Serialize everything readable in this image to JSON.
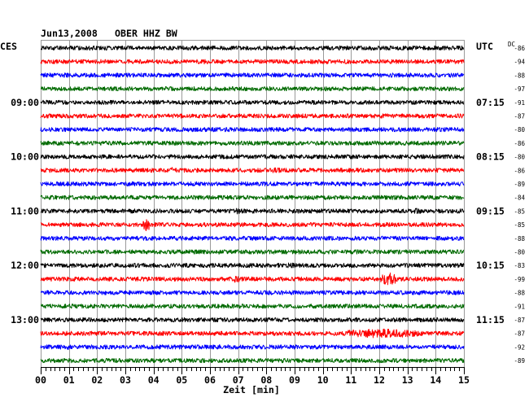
{
  "chart_data": {
    "type": "line",
    "date": "Jun13,2008",
    "station": "OBER HHZ BW",
    "left_header": "CES",
    "right_header": "UTC",
    "dc_header": "DC",
    "xlabel": "Zeit [min]",
    "xlim": [
      0,
      15
    ],
    "x_ticks": [
      "00",
      "01",
      "02",
      "03",
      "04",
      "05",
      "06",
      "07",
      "08",
      "09",
      "10",
      "11",
      "12",
      "13",
      "14",
      "15"
    ],
    "grid": true,
    "grid_color": "#9a9a9a",
    "series": [
      {
        "color": "#000000",
        "dc": -86
      },
      {
        "color": "#ff0000",
        "dc": -94,
        "events": [
          {
            "start_min": 5.7,
            "end_min": 6.0,
            "relative_amplitude": 1.6
          }
        ]
      },
      {
        "color": "#0000ff",
        "dc": -88
      },
      {
        "color": "#006a00",
        "dc": -97
      },
      {
        "color": "#000000",
        "dc": -91,
        "local_time": "09:00",
        "utc_time": "07:15"
      },
      {
        "color": "#ff0000",
        "dc": -87
      },
      {
        "color": "#0000ff",
        "dc": -80
      },
      {
        "color": "#006a00",
        "dc": -86
      },
      {
        "color": "#000000",
        "dc": -80,
        "local_time": "10:00",
        "utc_time": "08:15"
      },
      {
        "color": "#ff0000",
        "dc": -86,
        "events": [
          {
            "start_min": 4.5,
            "end_min": 4.8,
            "relative_amplitude": 1.4
          },
          {
            "start_min": 8.2,
            "end_min": 8.5,
            "relative_amplitude": 1.3
          }
        ]
      },
      {
        "color": "#0000ff",
        "dc": -89
      },
      {
        "color": "#006a00",
        "dc": -84
      },
      {
        "color": "#000000",
        "dc": -85,
        "local_time": "11:00",
        "utc_time": "09:15",
        "events": [
          {
            "start_min": 6.8,
            "end_min": 7.1,
            "relative_amplitude": 1.4
          },
          {
            "start_min": 13.2,
            "end_min": 13.5,
            "relative_amplitude": 1.4
          }
        ]
      },
      {
        "color": "#ff0000",
        "dc": -85,
        "events": [
          {
            "start_min": 3.6,
            "end_min": 3.9,
            "relative_amplitude": 3.2
          }
        ]
      },
      {
        "color": "#0000ff",
        "dc": -88
      },
      {
        "color": "#006a00",
        "dc": -80
      },
      {
        "color": "#000000",
        "dc": -83,
        "local_time": "12:00",
        "utc_time": "10:15",
        "events": [
          {
            "start_min": 8.7,
            "end_min": 9.0,
            "relative_amplitude": 1.3
          }
        ]
      },
      {
        "color": "#ff0000",
        "dc": -99,
        "events": [
          {
            "start_min": 6.7,
            "end_min": 7.1,
            "relative_amplitude": 1.6
          },
          {
            "start_min": 12.0,
            "end_min": 12.7,
            "relative_amplitude": 3.0
          }
        ]
      },
      {
        "color": "#0000ff",
        "dc": -88
      },
      {
        "color": "#006a00",
        "dc": -91
      },
      {
        "color": "#000000",
        "dc": -87,
        "local_time": "13:00",
        "utc_time": "11:15"
      },
      {
        "color": "#ff0000",
        "dc": -87,
        "events": [
          {
            "start_min": 10.5,
            "end_min": 13.6,
            "relative_amplitude": 2.2
          }
        ]
      },
      {
        "color": "#0000ff",
        "dc": -92,
        "events": [
          {
            "start_min": 0.9,
            "end_min": 1.2,
            "relative_amplitude": 1.3
          }
        ]
      },
      {
        "color": "#006a00",
        "dc": -89
      }
    ]
  }
}
